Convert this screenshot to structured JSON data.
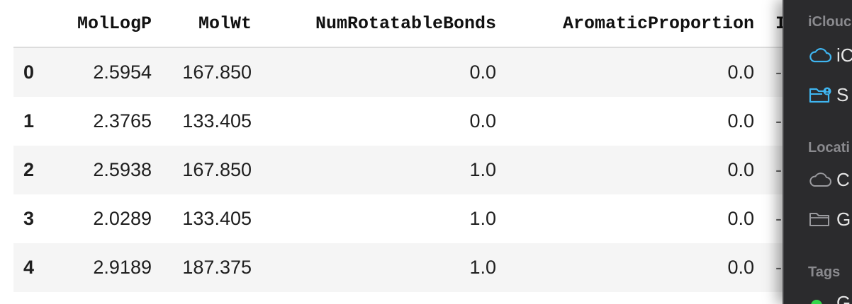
{
  "table": {
    "columns": [
      "MolLogP",
      "MolWt",
      "NumRotatableBonds",
      "AromaticProportion"
    ],
    "cut_header": "I",
    "rows": [
      {
        "index": "0",
        "MolLogP": "2.5954",
        "MolWt": "167.850",
        "NumRotatableBonds": "0.0",
        "AromaticProportion": "0.0"
      },
      {
        "index": "1",
        "MolLogP": "2.3765",
        "MolWt": "133.405",
        "NumRotatableBonds": "0.0",
        "AromaticProportion": "0.0"
      },
      {
        "index": "2",
        "MolLogP": "2.5938",
        "MolWt": "167.850",
        "NumRotatableBonds": "1.0",
        "AromaticProportion": "0.0"
      },
      {
        "index": "3",
        "MolLogP": "2.0289",
        "MolWt": "133.405",
        "NumRotatableBonds": "1.0",
        "AromaticProportion": "0.0"
      },
      {
        "index": "4",
        "MolLogP": "2.9189",
        "MolWt": "187.375",
        "NumRotatableBonds": "1.0",
        "AromaticProportion": "0.0"
      }
    ],
    "cut_cell": "-"
  },
  "sidebar": {
    "sections": [
      {
        "heading": "iClouc",
        "items": [
          {
            "label": "iC",
            "icon": "cloud-icon"
          },
          {
            "label": "S",
            "icon": "shared-folder-icon"
          }
        ]
      },
      {
        "heading": "Locati",
        "items": [
          {
            "label": "C",
            "icon": "cloud-outline-icon"
          },
          {
            "label": "G",
            "icon": "folder-icon"
          }
        ]
      },
      {
        "heading": "Tags",
        "items": [
          {
            "label": "G",
            "icon": "tag-dot-icon"
          }
        ]
      }
    ],
    "colors": {
      "background": "#2b2b2d",
      "accent": "#3fb5f0",
      "muted": "#8a8a8e",
      "tag_green": "#32d74b"
    }
  }
}
